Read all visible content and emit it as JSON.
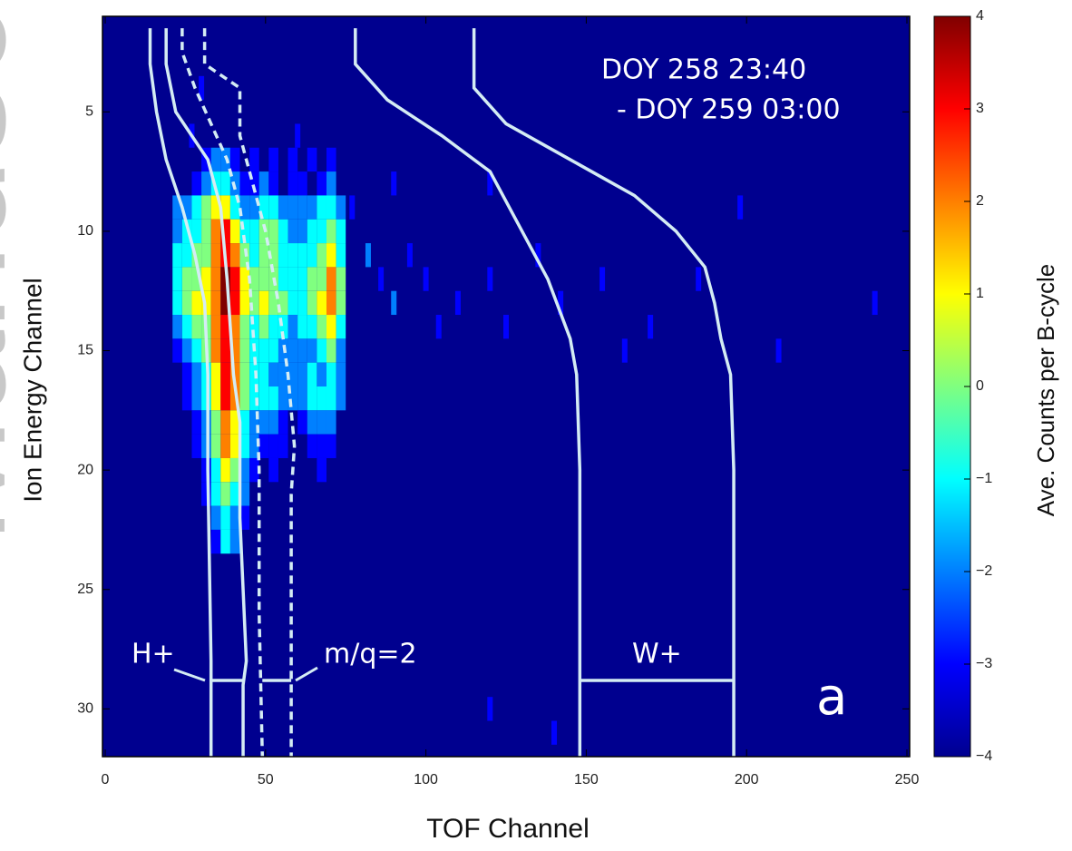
{
  "chart_data": {
    "type": "heatmap",
    "watermark": "Manuscript",
    "annotations": [
      "DOY 258 23:40",
      "- DOY 259 03:00",
      "H+",
      "m/q=2",
      "W+",
      "a"
    ],
    "xlabel": "TOF Channel",
    "ylabel": "Ion Energy Channel",
    "colorbar_label": "Ave. Counts per B-cycle",
    "xlim": [
      0,
      250
    ],
    "xticks": [
      0,
      50,
      100,
      150,
      200,
      250
    ],
    "ylim": [
      32,
      1
    ],
    "yticks": [
      5,
      10,
      15,
      20,
      25,
      30
    ],
    "clim": [
      -4,
      4
    ],
    "cticks": [
      {
        "value": -4,
        "label": "−4"
      },
      {
        "value": -3,
        "label": "−3"
      },
      {
        "value": -2,
        "label": "−2"
      },
      {
        "value": -1,
        "label": "−1"
      },
      0,
      1,
      2,
      3,
      4
    ],
    "colormap": "jet",
    "background": "#00008f",
    "heatmap": {
      "x_edges": [
        21,
        24,
        27,
        30,
        33,
        36,
        39,
        42,
        45,
        48,
        51,
        54,
        57,
        60,
        63,
        66,
        69,
        72,
        75
      ],
      "channels": [
        7,
        8,
        9,
        10,
        11,
        12,
        13,
        14,
        15,
        16,
        17,
        18,
        19,
        20,
        21,
        22,
        23
      ],
      "z": [
        [
          null,
          null,
          null,
          -3,
          -2,
          -2,
          -3,
          null,
          -3,
          null,
          -3,
          null,
          -3,
          null,
          -3,
          null,
          -3,
          null
        ],
        [
          null,
          null,
          -3,
          -2,
          -1,
          -1,
          -2,
          -3,
          -3,
          -2,
          -3,
          null,
          -3,
          -3,
          null,
          -3,
          -2,
          null
        ],
        [
          -2,
          -2,
          -1,
          0,
          1,
          1,
          -1,
          -2,
          -2,
          -1,
          -1,
          -2,
          -2,
          -2,
          -2,
          -1,
          -1,
          -2
        ],
        [
          -2,
          -1,
          -1,
          0,
          2,
          3,
          1,
          -1,
          -1,
          0,
          0,
          -1,
          -2,
          -2,
          -1,
          -1,
          0,
          -1
        ],
        [
          -1,
          -1,
          0,
          0,
          2,
          3,
          2,
          0,
          -1,
          0,
          0,
          -1,
          -1,
          -1,
          -1,
          0,
          1,
          -1
        ],
        [
          -1,
          0,
          0,
          1,
          2,
          4,
          3,
          1,
          0,
          0,
          0,
          -1,
          -1,
          -1,
          0,
          0,
          2,
          0
        ],
        [
          -1,
          0,
          1,
          1,
          2,
          4,
          3,
          1,
          0,
          1,
          0,
          0,
          -1,
          -1,
          0,
          1,
          2,
          0
        ],
        [
          -2,
          -1,
          0,
          0,
          2,
          3,
          2,
          0,
          -1,
          0,
          -1,
          -1,
          -2,
          -1,
          -1,
          0,
          1,
          -1
        ],
        [
          -3,
          -2,
          -1,
          0,
          2,
          3,
          2,
          0,
          -1,
          -1,
          -1,
          -2,
          -2,
          -2,
          -2,
          -1,
          0,
          -2
        ],
        [
          null,
          -3,
          -2,
          -1,
          1,
          3,
          2,
          0,
          -1,
          -1,
          -2,
          -2,
          -2,
          -2,
          -1,
          -2,
          -1,
          -2
        ],
        [
          null,
          -3,
          -2,
          -1,
          1,
          3,
          2,
          0,
          -1,
          -1,
          -1,
          -2,
          -2,
          -2,
          -1,
          -1,
          -1,
          -2
        ],
        [
          null,
          null,
          -3,
          -2,
          0,
          2,
          1,
          -1,
          -2,
          -2,
          -2,
          -3,
          null,
          -3,
          -2,
          -2,
          -2,
          null
        ],
        [
          null,
          null,
          -3,
          -2,
          0,
          2,
          1,
          -1,
          -2,
          -3,
          -3,
          -3,
          null,
          null,
          -3,
          -3,
          -3,
          null
        ],
        [
          null,
          null,
          null,
          -3,
          -1,
          1,
          0,
          -2,
          -3,
          null,
          -3,
          null,
          null,
          null,
          null,
          -3,
          null,
          null
        ],
        [
          null,
          null,
          null,
          -3,
          -1,
          0,
          -1,
          -2,
          null,
          null,
          null,
          null,
          null,
          null,
          null,
          null,
          null,
          null
        ],
        [
          null,
          null,
          null,
          null,
          -2,
          -1,
          -2,
          -3,
          null,
          null,
          null,
          null,
          null,
          null,
          null,
          null,
          null,
          null
        ],
        [
          null,
          null,
          null,
          null,
          -3,
          -1,
          -2,
          null,
          null,
          null,
          null,
          null,
          null,
          null,
          null,
          null,
          null,
          null
        ]
      ]
    },
    "sparse": {
      "x": [
        77,
        82,
        86,
        90,
        95,
        100,
        104,
        110,
        120,
        125,
        135,
        142,
        155,
        162,
        170,
        185,
        198,
        210,
        240,
        30,
        27,
        60,
        90,
        120,
        140,
        120
      ],
      "y": [
        9,
        11,
        12,
        13,
        11,
        12,
        14,
        13,
        12,
        14,
        11,
        13,
        12,
        15,
        14,
        12,
        9,
        15,
        13,
        4,
        6,
        6,
        8,
        8,
        31,
        30
      ],
      "values": [
        -3,
        -2,
        -3,
        -2,
        -3,
        -3,
        -3,
        -3,
        -3,
        -3,
        -3,
        -3,
        -3,
        -3,
        -3,
        -3,
        -3,
        -3,
        -3,
        -3,
        -3,
        -3,
        -3,
        -3,
        -3,
        -3
      ]
    },
    "series": [
      {
        "color": "#d4ecf4",
        "dash": false,
        "x": [
          14,
          14,
          16,
          19,
          24,
          28,
          31,
          32,
          32,
          33,
          33
        ],
        "values": [
          1.5,
          3,
          5,
          7,
          9,
          11,
          13,
          16,
          20,
          28,
          32
        ]
      },
      {
        "color": "#d4ecf4",
        "dash": false,
        "x": [
          19,
          19,
          22,
          27,
          32,
          36,
          38,
          40,
          42,
          42,
          44,
          43,
          43
        ],
        "values": [
          1.5,
          3,
          5,
          6,
          7,
          9,
          12,
          16,
          18,
          22,
          28,
          29,
          32
        ]
      },
      {
        "color": "#d4ecf4",
        "dash": true,
        "x": [
          24,
          24,
          28,
          33,
          38,
          42,
          45,
          47,
          48,
          48,
          49
        ],
        "values": [
          1.5,
          2.5,
          4,
          5.5,
          7,
          9,
          12,
          16,
          20,
          26,
          32
        ]
      },
      {
        "color": "#d4ecf4",
        "dash": true,
        "x": [
          31,
          31,
          42,
          42,
          46,
          50,
          54,
          57,
          59,
          58,
          58,
          58
        ],
        "values": [
          1.5,
          3,
          4,
          6,
          8,
          10,
          13,
          16,
          19,
          21,
          26,
          32
        ]
      },
      {
        "color": "#d4ecf4",
        "dash": false,
        "x": [
          78,
          78,
          88,
          105,
          120,
          130,
          138,
          145,
          147,
          148,
          148
        ],
        "values": [
          1.5,
          3,
          4.5,
          6,
          7.5,
          10,
          12,
          14.5,
          16,
          20,
          32
        ]
      },
      {
        "color": "#d4ecf4",
        "dash": false,
        "x": [
          115,
          115,
          125,
          145,
          165,
          178,
          187,
          190,
          192,
          195,
          196,
          196
        ],
        "values": [
          1.5,
          4,
          5.5,
          7,
          8.5,
          10,
          11.5,
          13,
          14.5,
          16,
          20,
          32
        ]
      }
    ]
  }
}
